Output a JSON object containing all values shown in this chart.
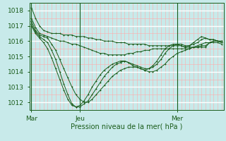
{
  "title": "Pression niveau de la mer( hPa )",
  "bg_color": "#c8eaea",
  "line_color": "#1a5c1a",
  "ylim": [
    1011.5,
    1018.5
  ],
  "yticks": [
    1012,
    1013,
    1014,
    1015,
    1016,
    1017,
    1018
  ],
  "xtick_labels": [
    "Mar",
    "Jeu",
    "Mer"
  ],
  "xtick_positions": [
    0,
    12,
    36
  ],
  "total_points": 48,
  "series": [
    [
      1018.2,
      1017.5,
      1017.0,
      1016.7,
      1016.6,
      1016.5,
      1016.5,
      1016.5,
      1016.4,
      1016.4,
      1016.4,
      1016.3,
      1016.3,
      1016.3,
      1016.2,
      1016.2,
      1016.1,
      1016.1,
      1016.0,
      1016.0,
      1016.0,
      1015.9,
      1015.9,
      1015.9,
      1015.8,
      1015.8,
      1015.8,
      1015.8,
      1015.8,
      1015.7,
      1015.7,
      1015.7,
      1015.7,
      1015.7,
      1015.7,
      1015.7,
      1015.7,
      1015.7,
      1015.6,
      1015.6,
      1015.6,
      1015.6,
      1015.6,
      1015.6,
      1015.9,
      1015.9,
      1015.9,
      1015.8
    ],
    [
      1017.5,
      1016.9,
      1016.5,
      1016.4,
      1016.3,
      1016.2,
      1016.1,
      1016.0,
      1016.0,
      1015.9,
      1015.8,
      1015.8,
      1015.7,
      1015.6,
      1015.5,
      1015.4,
      1015.3,
      1015.2,
      1015.2,
      1015.1,
      1015.1,
      1015.1,
      1015.1,
      1015.1,
      1015.2,
      1015.2,
      1015.3,
      1015.3,
      1015.4,
      1015.4,
      1015.5,
      1015.5,
      1015.5,
      1015.5,
      1015.5,
      1015.5,
      1015.5,
      1015.5,
      1015.5,
      1015.5,
      1015.6,
      1015.6,
      1015.7,
      1015.7,
      1015.9,
      1016.0,
      1016.0,
      1015.9
    ],
    [
      1017.3,
      1016.7,
      1016.4,
      1016.3,
      1016.2,
      1015.8,
      1015.4,
      1014.8,
      1014.2,
      1013.6,
      1013.0,
      1012.5,
      1012.2,
      1012.0,
      1012.0,
      1012.2,
      1012.5,
      1012.8,
      1013.1,
      1013.4,
      1013.7,
      1013.9,
      1014.1,
      1014.2,
      1014.3,
      1014.3,
      1014.3,
      1014.2,
      1014.1,
      1014.0,
      1014.0,
      1014.1,
      1014.3,
      1014.5,
      1014.8,
      1015.0,
      1015.2,
      1015.3,
      1015.4,
      1015.5,
      1015.6,
      1015.7,
      1015.8,
      1015.9,
      1015.9,
      1016.0,
      1016.0,
      1015.9
    ],
    [
      1017.1,
      1016.6,
      1016.3,
      1016.1,
      1015.9,
      1015.4,
      1014.8,
      1014.0,
      1013.2,
      1012.5,
      1011.9,
      1011.7,
      1011.7,
      1011.9,
      1012.1,
      1012.5,
      1012.9,
      1013.3,
      1013.7,
      1014.0,
      1014.3,
      1014.5,
      1014.6,
      1014.7,
      1014.6,
      1014.5,
      1014.4,
      1014.3,
      1014.2,
      1014.2,
      1014.3,
      1014.5,
      1014.8,
      1015.2,
      1015.5,
      1015.7,
      1015.8,
      1015.8,
      1015.7,
      1015.7,
      1015.8,
      1015.9,
      1016.1,
      1016.2,
      1016.1,
      1016.1,
      1016.0,
      1016.0
    ],
    [
      1017.0,
      1016.5,
      1016.2,
      1015.9,
      1015.5,
      1014.9,
      1014.2,
      1013.5,
      1012.8,
      1012.2,
      1011.8,
      1011.7,
      1011.8,
      1012.1,
      1012.5,
      1013.0,
      1013.4,
      1013.8,
      1014.1,
      1014.3,
      1014.5,
      1014.6,
      1014.7,
      1014.7,
      1014.6,
      1014.4,
      1014.3,
      1014.2,
      1014.1,
      1014.2,
      1014.4,
      1014.7,
      1015.1,
      1015.5,
      1015.7,
      1015.8,
      1015.8,
      1015.7,
      1015.6,
      1015.7,
      1015.9,
      1016.1,
      1016.3,
      1016.2,
      1016.1,
      1016.1,
      1016.0,
      1016.0
    ]
  ]
}
